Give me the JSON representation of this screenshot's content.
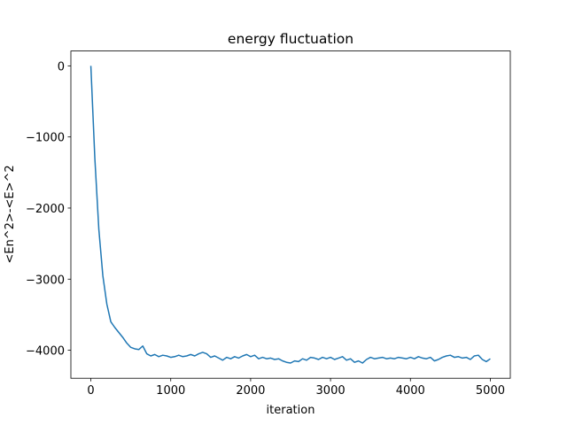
{
  "chart_data": {
    "type": "line",
    "title": "energy fluctuation",
    "x_label": "iteration",
    "y_label": "<En^2>-<E>^2",
    "x": [
      0,
      50,
      100,
      150,
      200,
      250,
      300,
      350,
      400,
      450,
      500,
      550,
      600,
      650,
      700,
      750,
      800,
      850,
      900,
      950,
      1000,
      1050,
      1100,
      1150,
      1200,
      1250,
      1300,
      1350,
      1400,
      1450,
      1500,
      1550,
      1600,
      1650,
      1700,
      1750,
      1800,
      1850,
      1900,
      1950,
      2000,
      2050,
      2100,
      2150,
      2200,
      2250,
      2300,
      2350,
      2400,
      2450,
      2500,
      2550,
      2600,
      2650,
      2700,
      2750,
      2800,
      2850,
      2900,
      2950,
      3000,
      3050,
      3100,
      3150,
      3200,
      3250,
      3300,
      3350,
      3400,
      3450,
      3500,
      3550,
      3600,
      3650,
      3700,
      3750,
      3800,
      3850,
      3900,
      3950,
      4000,
      4050,
      4100,
      4150,
      4200,
      4250,
      4300,
      4350,
      4400,
      4450,
      4500,
      4550,
      4600,
      4650,
      4700,
      4750,
      4800,
      4850,
      4900,
      4950,
      5000
    ],
    "series": [
      {
        "color": "#1f77b4",
        "values": [
          0,
          -1300,
          -2300,
          -2950,
          -3350,
          -3600,
          -3680,
          -3750,
          -3820,
          -3900,
          -3960,
          -3980,
          -3990,
          -3940,
          -4050,
          -4080,
          -4060,
          -4090,
          -4070,
          -4080,
          -4100,
          -4090,
          -4070,
          -4090,
          -4080,
          -4060,
          -4080,
          -4050,
          -4030,
          -4050,
          -4100,
          -4080,
          -4110,
          -4140,
          -4100,
          -4120,
          -4090,
          -4110,
          -4080,
          -4060,
          -4090,
          -4070,
          -4120,
          -4100,
          -4120,
          -4110,
          -4130,
          -4120,
          -4150,
          -4170,
          -4180,
          -4150,
          -4160,
          -4120,
          -4140,
          -4100,
          -4110,
          -4130,
          -4100,
          -4120,
          -4100,
          -4130,
          -4110,
          -4090,
          -4140,
          -4120,
          -4170,
          -4150,
          -4180,
          -4130,
          -4100,
          -4120,
          -4110,
          -4100,
          -4120,
          -4110,
          -4120,
          -4100,
          -4110,
          -4120,
          -4100,
          -4120,
          -4090,
          -4110,
          -4120,
          -4100,
          -4150,
          -4130,
          -4100,
          -4080,
          -4070,
          -4100,
          -4090,
          -4110,
          -4100,
          -4130,
          -4080,
          -4070,
          -4130,
          -4160,
          -4120
        ]
      }
    ],
    "xlim": [
      -250,
      5250
    ],
    "ylim": [
      -4394,
      209
    ],
    "xticks": [
      0,
      1000,
      2000,
      3000,
      4000,
      5000
    ],
    "yticks": [
      0,
      {
        "value": -1000,
        "label": "−1000"
      },
      {
        "value": -2000,
        "label": "−2000"
      },
      {
        "value": -3000,
        "label": "−3000"
      },
      {
        "value": -4000,
        "label": "−4000"
      }
    ],
    "grid": false
  }
}
